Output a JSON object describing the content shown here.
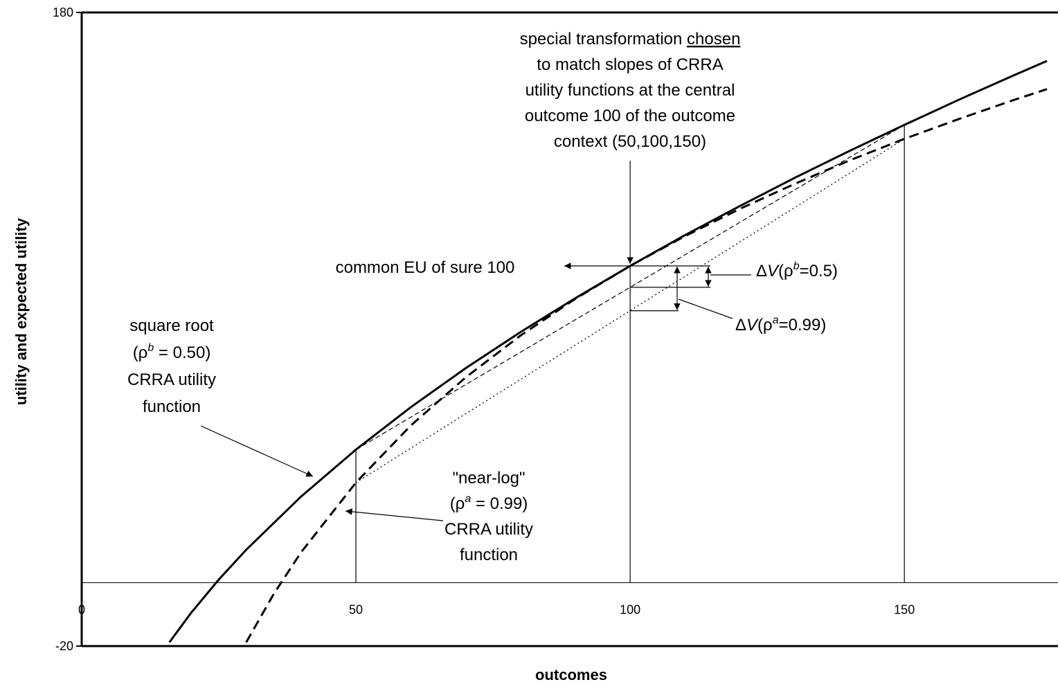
{
  "chart_data": {
    "type": "line",
    "x_label": "outcomes",
    "y_label": "utility and expected utility",
    "xlim": [
      0,
      178
    ],
    "ylim": [
      -20,
      180
    ],
    "xticks": [
      0,
      50,
      100,
      150
    ],
    "yticks": [
      -20,
      180
    ],
    "reference_x": [
      50,
      100,
      150
    ],
    "reference_y": 0,
    "series": [
      {
        "color": "#000000",
        "style": "solid",
        "width": 3,
        "x": [
          16,
          20,
          25,
          30,
          40,
          50,
          60,
          70,
          80,
          90,
          100,
          110,
          120,
          130,
          140,
          150,
          160,
          170,
          176
        ],
        "values": [
          -18.8,
          -9.4,
          1.0,
          10.4,
          27.2,
          42.0,
          55.4,
          67.7,
          79.1,
          89.8,
          100,
          109.7,
          118.9,
          127.8,
          136.3,
          144.5,
          152.5,
          160.2,
          164.7
        ]
      },
      {
        "color": "#000000",
        "style": "dashed",
        "width": 3,
        "x": [
          30,
          35,
          40,
          50,
          60,
          70,
          80,
          90,
          100,
          110,
          120,
          130,
          140,
          150,
          160,
          170,
          176
        ],
        "values": [
          -18.8,
          -3.6,
          9.6,
          31.6,
          49.6,
          64.8,
          78.0,
          89.6,
          100,
          109.4,
          118.0,
          125.9,
          133.3,
          140.1,
          146.4,
          152.4,
          155.8
        ]
      },
      {
        "color": "#000000",
        "style": "dashed",
        "width": 1.2,
        "x": [
          50,
          150
        ],
        "values": [
          42.0,
          144.5
        ]
      },
      {
        "color": "#000000",
        "style": "dotted",
        "width": 1.3,
        "x": [
          50,
          150
        ],
        "values": [
          31.6,
          140.1
        ]
      }
    ],
    "annotations": [
      {
        "lines": [
          [
            {
              "text": "special transformation "
            },
            {
              "text": "chosen",
              "underline": true
            }
          ],
          [
            {
              "text": "to match slopes of CRRA"
            }
          ],
          [
            {
              "text": "utility functions at the central"
            }
          ],
          [
            {
              "text": "outcome 100 of the outcome"
            }
          ],
          [
            {
              "text": "context (50,100,150)"
            }
          ]
        ]
      },
      {
        "lines": [
          [
            {
              "text": "common EU of sure 100"
            }
          ]
        ]
      },
      {
        "lines": [
          [
            {
              "text": "Δ"
            },
            {
              "text": "V",
              "italic": true
            },
            {
              "text": "(ρ"
            },
            {
              "text": "b",
              "italic": true,
              "sup": true
            },
            {
              "text": "=0.5)"
            }
          ]
        ]
      },
      {
        "lines": [
          [
            {
              "text": "Δ"
            },
            {
              "text": "V",
              "italic": true
            },
            {
              "text": "(ρ"
            },
            {
              "text": "a",
              "italic": true,
              "sup": true
            },
            {
              "text": "=0.99)"
            }
          ]
        ]
      },
      {
        "lines": [
          [
            {
              "text": "square root"
            }
          ],
          [
            {
              "text": "(ρ"
            },
            {
              "text": "b",
              "italic": true,
              "sup": true
            },
            {
              "text": " = 0.50)"
            }
          ],
          [
            {
              "text": "CRRA utility"
            }
          ],
          [
            {
              "text": "function"
            }
          ]
        ]
      },
      {
        "lines": [
          [
            {
              "text": "\"near-log\""
            }
          ],
          [
            {
              "text": "(ρ"
            },
            {
              "text": "a",
              "italic": true,
              "sup": true
            },
            {
              "text": " = 0.99)"
            }
          ],
          [
            {
              "text": "CRRA utility"
            }
          ],
          [
            {
              "text": "function"
            }
          ]
        ]
      }
    ]
  }
}
